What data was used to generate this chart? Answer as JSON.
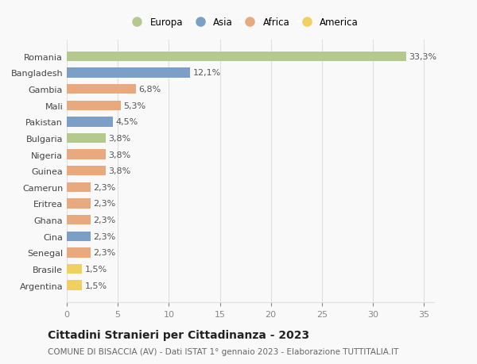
{
  "categories": [
    "Romania",
    "Bangladesh",
    "Gambia",
    "Mali",
    "Pakistan",
    "Bulgaria",
    "Nigeria",
    "Guinea",
    "Camerun",
    "Eritrea",
    "Ghana",
    "Cina",
    "Senegal",
    "Brasile",
    "Argentina"
  ],
  "values": [
    33.3,
    12.1,
    6.8,
    5.3,
    4.5,
    3.8,
    3.8,
    3.8,
    2.3,
    2.3,
    2.3,
    2.3,
    2.3,
    1.5,
    1.5
  ],
  "labels": [
    "33,3%",
    "12,1%",
    "6,8%",
    "5,3%",
    "4,5%",
    "3,8%",
    "3,8%",
    "3,8%",
    "2,3%",
    "2,3%",
    "2,3%",
    "2,3%",
    "2,3%",
    "1,5%",
    "1,5%"
  ],
  "continents": [
    "Europa",
    "Asia",
    "Africa",
    "Africa",
    "Asia",
    "Europa",
    "Africa",
    "Africa",
    "Africa",
    "Africa",
    "Africa",
    "Asia",
    "Africa",
    "America",
    "America"
  ],
  "continent_colors": {
    "Europa": "#b5c98e",
    "Asia": "#7b9fc7",
    "Africa": "#e8a97e",
    "America": "#f0d060"
  },
  "legend_order": [
    "Europa",
    "Asia",
    "Africa",
    "America"
  ],
  "xlim": [
    0,
    36
  ],
  "xticks": [
    0,
    5,
    10,
    15,
    20,
    25,
    30,
    35
  ],
  "title": "Cittadini Stranieri per Cittadinanza - 2023",
  "subtitle": "COMUNE DI BISACCIA (AV) - Dati ISTAT 1° gennaio 2023 - Elaborazione TUTTITALIA.IT",
  "background_color": "#f9f9f9",
  "grid_color": "#e0e0e0",
  "bar_height": 0.6,
  "label_fontsize": 8,
  "tick_fontsize": 8,
  "title_fontsize": 10,
  "subtitle_fontsize": 7.5
}
